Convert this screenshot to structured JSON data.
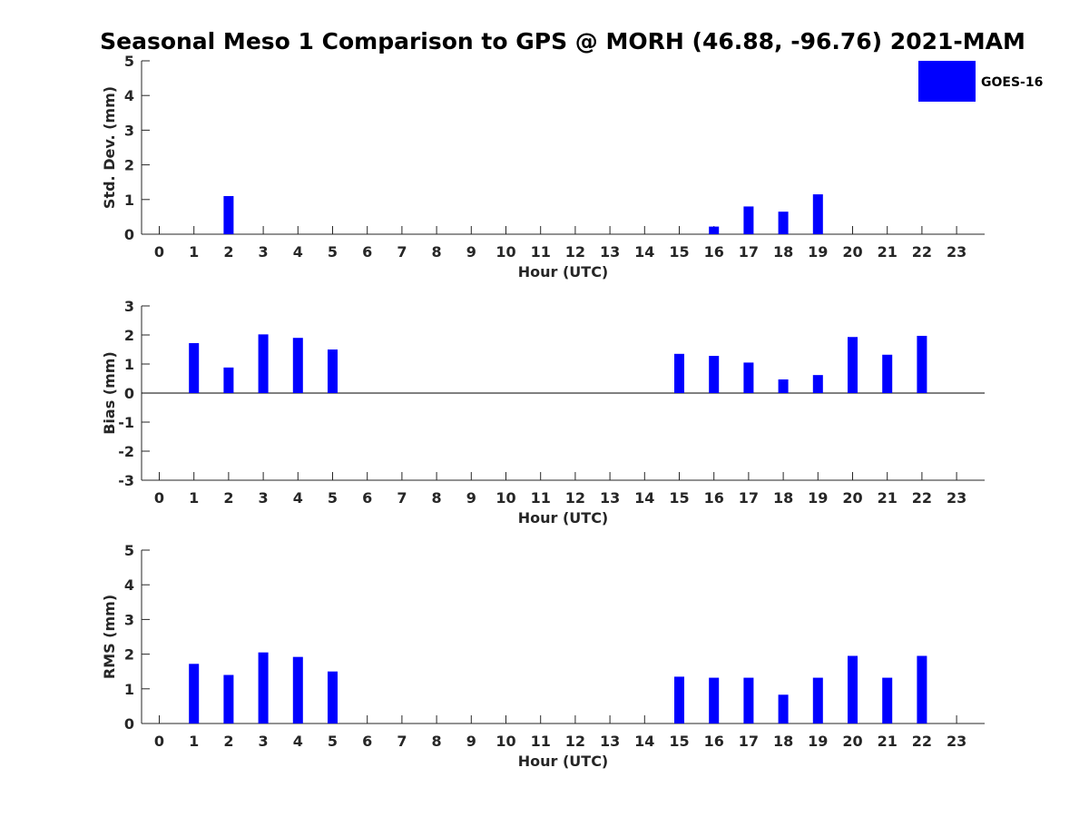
{
  "chart_data": {
    "title": "Seasonal Meso 1 Comparison to GPS @ MORH (46.88, -96.76) 2021-MAM",
    "legend": {
      "label": "GOES-16",
      "color": "#0000ff",
      "placement": "top-right"
    },
    "bar_color": "#0000ff",
    "panels": [
      {
        "type": "bar",
        "xlabel": "Hour (UTC)",
        "ylabel": "Std. Dev. (mm)",
        "ylim": [
          0,
          5
        ],
        "yticks": [
          "0",
          "1",
          "2",
          "3",
          "4",
          "5"
        ],
        "categories": [
          "0",
          "1",
          "2",
          "3",
          "4",
          "5",
          "6",
          "7",
          "8",
          "9",
          "10",
          "11",
          "12",
          "13",
          "14",
          "15",
          "16",
          "17",
          "18",
          "19",
          "20",
          "21",
          "22",
          "23"
        ],
        "values": [
          0,
          0,
          1.1,
          0,
          0,
          0,
          0,
          0,
          0,
          0,
          0,
          0,
          0,
          0,
          0,
          0,
          0.22,
          0.8,
          0.65,
          1.15,
          0,
          0,
          0,
          0
        ]
      },
      {
        "type": "bar",
        "xlabel": "Hour (UTC)",
        "ylabel": "Bias (mm)",
        "ylim": [
          -3,
          3
        ],
        "yticks": [
          "-3",
          "-2",
          "-1",
          "0",
          "1",
          "2",
          "3"
        ],
        "categories": [
          "0",
          "1",
          "2",
          "3",
          "4",
          "5",
          "6",
          "7",
          "8",
          "9",
          "10",
          "11",
          "12",
          "13",
          "14",
          "15",
          "16",
          "17",
          "18",
          "19",
          "20",
          "21",
          "22",
          "23"
        ],
        "values": [
          0,
          1.72,
          0.88,
          2.02,
          1.9,
          1.5,
          0,
          0,
          0,
          0,
          0,
          0,
          0,
          0,
          0,
          1.35,
          1.28,
          1.05,
          0.47,
          0.62,
          1.93,
          1.32,
          1.97,
          0
        ]
      },
      {
        "type": "bar",
        "xlabel": "Hour (UTC)",
        "ylabel": "RMS (mm)",
        "ylim": [
          0,
          5
        ],
        "yticks": [
          "0",
          "1",
          "2",
          "3",
          "4",
          "5"
        ],
        "categories": [
          "0",
          "1",
          "2",
          "3",
          "4",
          "5",
          "6",
          "7",
          "8",
          "9",
          "10",
          "11",
          "12",
          "13",
          "14",
          "15",
          "16",
          "17",
          "18",
          "19",
          "20",
          "21",
          "22",
          "23"
        ],
        "values": [
          0,
          1.72,
          1.4,
          2.05,
          1.92,
          1.5,
          0,
          0,
          0,
          0,
          0,
          0,
          0,
          0,
          0,
          1.35,
          1.32,
          1.32,
          0.83,
          1.32,
          1.95,
          1.32,
          1.95,
          0
        ]
      }
    ]
  }
}
